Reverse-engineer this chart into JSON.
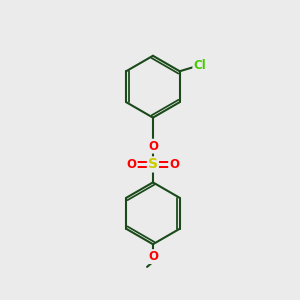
{
  "bg_color": "#ebebeb",
  "bond_color": "#1a4a1a",
  "bond_width": 1.5,
  "S_color": "#cccc00",
  "O_color": "#ff0000",
  "Cl_color": "#44cc00",
  "font_size_atom": 8.5,
  "font_size_S": 10,
  "xlim": [
    0,
    10
  ],
  "ylim": [
    0,
    10
  ]
}
